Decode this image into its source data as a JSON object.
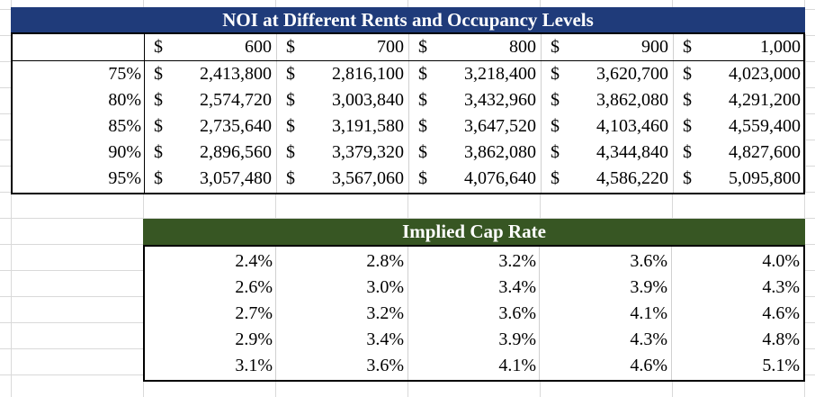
{
  "noi": {
    "title": "NOI at Different Rents and Occupancy Levels",
    "header": [
      "600",
      "700",
      "800",
      "900",
      "1,000"
    ],
    "rows": [
      {
        "occ": "75%",
        "values": [
          "2,413,800",
          "2,816,100",
          "3,218,400",
          "3,620,700",
          "4,023,000"
        ]
      },
      {
        "occ": "80%",
        "values": [
          "2,574,720",
          "3,003,840",
          "3,432,960",
          "3,862,080",
          "4,291,200"
        ]
      },
      {
        "occ": "85%",
        "values": [
          "2,735,640",
          "3,191,580",
          "3,647,520",
          "4,103,460",
          "4,559,400"
        ]
      },
      {
        "occ": "90%",
        "values": [
          "2,896,560",
          "3,379,320",
          "3,862,080",
          "4,344,840",
          "4,827,600"
        ]
      },
      {
        "occ": "95%",
        "values": [
          "3,057,480",
          "3,567,060",
          "4,076,640",
          "4,586,220",
          "5,095,800"
        ]
      }
    ],
    "currency": "$",
    "title_color": "#1f3b7a"
  },
  "cap": {
    "title": "Implied Cap Rate",
    "title_color": "#375623",
    "rows": [
      [
        "2.4%",
        "2.8%",
        "3.2%",
        "3.6%",
        "4.0%"
      ],
      [
        "2.6%",
        "3.0%",
        "3.4%",
        "3.9%",
        "4.3%"
      ],
      [
        "2.7%",
        "3.2%",
        "3.6%",
        "4.1%",
        "4.6%"
      ],
      [
        "2.9%",
        "3.4%",
        "3.9%",
        "4.3%",
        "4.8%"
      ],
      [
        "3.1%",
        "3.6%",
        "4.1%",
        "4.6%",
        "5.1%"
      ]
    ]
  }
}
